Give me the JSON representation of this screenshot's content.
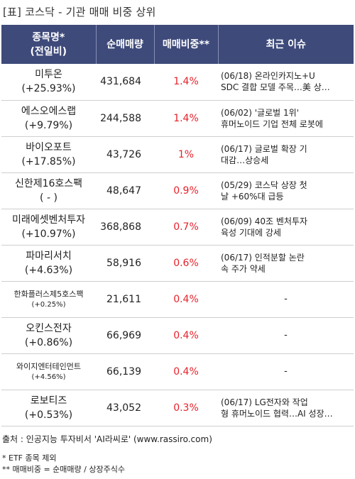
{
  "title": "[표] 코스닥 - 기관 매매 비중 상위",
  "headers": {
    "name_line1": "종목명*",
    "name_line2": "(전일비)",
    "volume": "순매매량",
    "ratio": "매매비중**",
    "issue": "최근 이슈"
  },
  "rows": [
    {
      "name": "미투온",
      "change": "(+25.93%)",
      "volume": "431,684",
      "ratio": "1.4%",
      "issue": "(06/18) 온라인카지노+U\nSDC 결합 모델 주목…美 상…"
    },
    {
      "name": "에스오에스랩",
      "change": "(+9.79%)",
      "volume": "244,588",
      "ratio": "1.4%",
      "issue": "(06/02) '글로벌 1위'\n 휴머노이드 기업 전체 로봇에"
    },
    {
      "name": "바이오포트",
      "change": "(+17.85%)",
      "volume": "43,726",
      "ratio": "1%",
      "issue": "(06/17) 글로벌 확장 기\n대감…상승세"
    },
    {
      "name": "신한제16호스팩",
      "change": "( - )",
      "volume": "48,647",
      "ratio": "0.9%",
      "issue": "(05/29) 코스닥 상장 첫\n날 +60%대 급등"
    },
    {
      "name": "미래에셋벤처투자",
      "change": "(+10.97%)",
      "volume": "368,868",
      "ratio": "0.7%",
      "issue": "(06/09) 40조 벤처투자\n 육성 기대에 강세"
    },
    {
      "name": "파마리서치",
      "change": "(+4.63%)",
      "volume": "58,916",
      "ratio": "0.6%",
      "issue": "(06/17) 인적분할 논란\n속 주가 약세"
    },
    {
      "name": "한화플러스제5호스팩",
      "change": "(+0.25%)",
      "volume": "21,611",
      "ratio": "0.4%",
      "issue": "-",
      "small": true
    },
    {
      "name": "오킨스전자",
      "change": "(+0.86%)",
      "volume": "66,969",
      "ratio": "0.4%",
      "issue": "-"
    },
    {
      "name": "와이지엔터테인먼트",
      "change": "(+4.56%)",
      "volume": "66,139",
      "ratio": "0.4%",
      "issue": "-",
      "small": true
    },
    {
      "name": "로보티즈",
      "change": "(+0.53%)",
      "volume": "43,052",
      "ratio": "0.3%",
      "issue": "(06/17) LG전자와 작업\n형 휴머노이드 협력…AI 성장…"
    }
  ],
  "source": "출처 : 인공지능 투자비서 'AI라씨로' (www.rassiro.com)",
  "note1": "* ETF 종목 제외",
  "note2": "** 매매비중 = 순매매량 / 상장주식수",
  "colors": {
    "header_bg": "#3e4a7a",
    "ratio_text": "#e8222b"
  }
}
